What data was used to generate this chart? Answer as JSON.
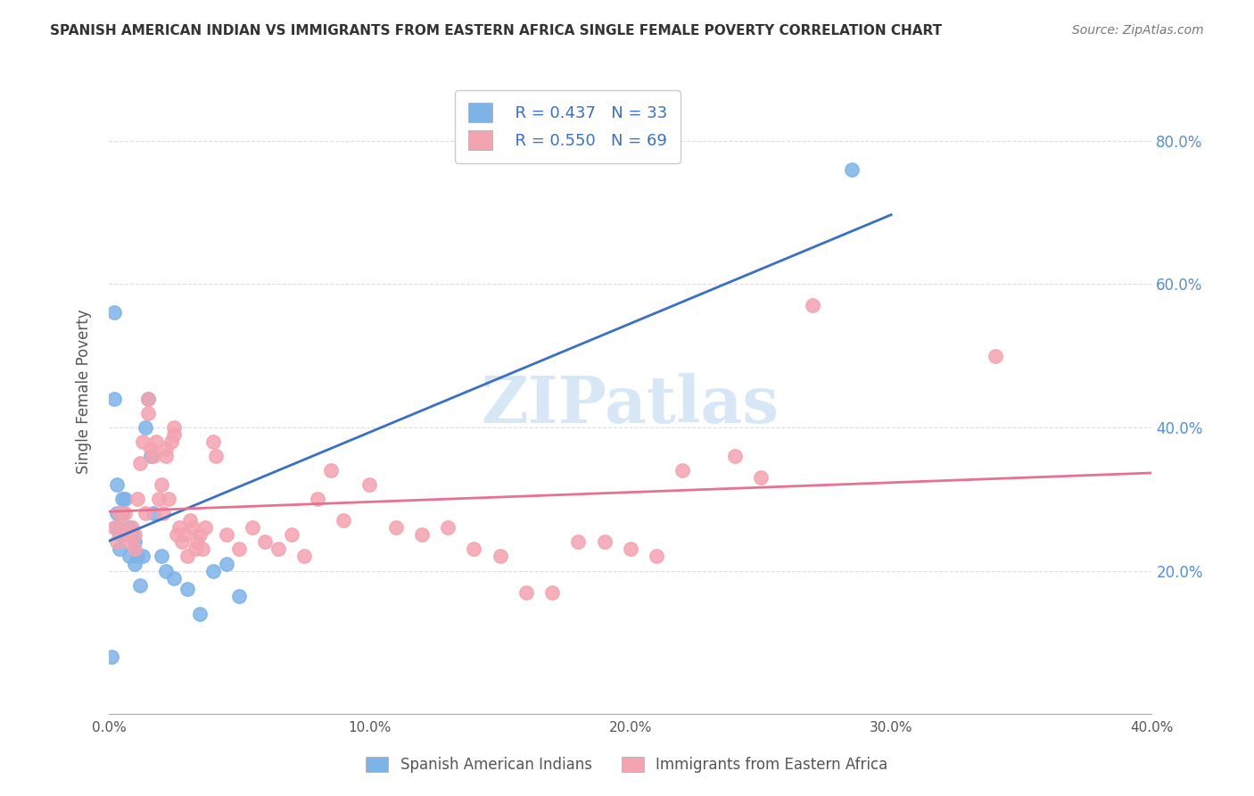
{
  "title": "SPANISH AMERICAN INDIAN VS IMMIGRANTS FROM EASTERN AFRICA SINGLE FEMALE POVERTY CORRELATION CHART",
  "source": "Source: ZipAtlas.com",
  "xlabel_ticks": [
    "0.0%",
    "10.0%",
    "20.0%",
    "30.0%",
    "40.0%"
  ],
  "xlabel_tick_vals": [
    0.0,
    0.1,
    0.2,
    0.3,
    0.4
  ],
  "ylabel": "Single Female Poverty",
  "ylabel_right_ticks": [
    "20.0%",
    "40.0%",
    "60.0%",
    "80.0%"
  ],
  "ylabel_right_tick_vals": [
    0.2,
    0.4,
    0.6,
    0.8
  ],
  "watermark": "ZIPatlas",
  "legend_R_blue": "R = 0.437",
  "legend_N_blue": "N = 33",
  "legend_R_pink": "R = 0.550",
  "legend_N_pink": "N = 69",
  "legend_label_blue": "Spanish American Indians",
  "legend_label_pink": "Immigrants from Eastern Africa",
  "blue_color": "#7EB3E8",
  "pink_color": "#F4A3B0",
  "blue_line_color": "#3A6FC4",
  "pink_line_color": "#E87090",
  "blue_scatter": {
    "x": [
      0.001,
      0.002,
      0.002,
      0.003,
      0.003,
      0.003,
      0.004,
      0.004,
      0.005,
      0.005,
      0.006,
      0.007,
      0.008,
      0.008,
      0.009,
      0.01,
      0.01,
      0.011,
      0.012,
      0.013,
      0.014,
      0.015,
      0.016,
      0.017,
      0.02,
      0.022,
      0.025,
      0.03,
      0.035,
      0.04,
      0.045,
      0.05,
      0.285
    ],
    "y": [
      0.08,
      0.56,
      0.44,
      0.32,
      0.28,
      0.26,
      0.25,
      0.23,
      0.3,
      0.28,
      0.3,
      0.25,
      0.26,
      0.22,
      0.25,
      0.24,
      0.21,
      0.22,
      0.18,
      0.22,
      0.4,
      0.44,
      0.36,
      0.28,
      0.22,
      0.2,
      0.19,
      0.175,
      0.14,
      0.2,
      0.21,
      0.165,
      0.76
    ]
  },
  "pink_scatter": {
    "x": [
      0.002,
      0.003,
      0.004,
      0.005,
      0.006,
      0.007,
      0.008,
      0.009,
      0.01,
      0.01,
      0.011,
      0.012,
      0.013,
      0.014,
      0.015,
      0.015,
      0.016,
      0.017,
      0.018,
      0.019,
      0.02,
      0.021,
      0.022,
      0.022,
      0.023,
      0.024,
      0.025,
      0.025,
      0.026,
      0.027,
      0.028,
      0.029,
      0.03,
      0.031,
      0.032,
      0.033,
      0.034,
      0.035,
      0.036,
      0.037,
      0.04,
      0.041,
      0.045,
      0.05,
      0.055,
      0.06,
      0.065,
      0.07,
      0.075,
      0.08,
      0.085,
      0.09,
      0.1,
      0.11,
      0.12,
      0.13,
      0.14,
      0.15,
      0.16,
      0.17,
      0.18,
      0.19,
      0.2,
      0.21,
      0.22,
      0.24,
      0.25,
      0.27,
      0.34
    ],
    "y": [
      0.26,
      0.24,
      0.28,
      0.26,
      0.28,
      0.25,
      0.24,
      0.26,
      0.25,
      0.23,
      0.3,
      0.35,
      0.38,
      0.28,
      0.42,
      0.44,
      0.37,
      0.36,
      0.38,
      0.3,
      0.32,
      0.28,
      0.36,
      0.37,
      0.3,
      0.38,
      0.4,
      0.39,
      0.25,
      0.26,
      0.24,
      0.25,
      0.22,
      0.27,
      0.26,
      0.23,
      0.24,
      0.25,
      0.23,
      0.26,
      0.38,
      0.36,
      0.25,
      0.23,
      0.26,
      0.24,
      0.23,
      0.25,
      0.22,
      0.3,
      0.34,
      0.27,
      0.32,
      0.26,
      0.25,
      0.26,
      0.23,
      0.22,
      0.17,
      0.17,
      0.24,
      0.24,
      0.23,
      0.22,
      0.34,
      0.36,
      0.33,
      0.57,
      0.5
    ]
  },
  "xlim": [
    0.0,
    0.4
  ],
  "ylim": [
    0.0,
    0.9
  ],
  "background_color": "#ffffff",
  "grid_color": "#dddddd"
}
